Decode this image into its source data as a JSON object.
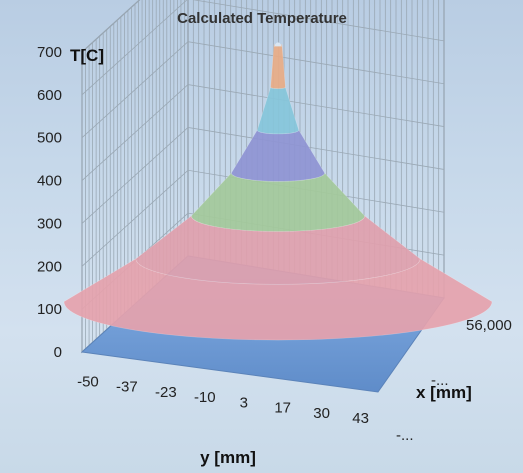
{
  "chart_data": {
    "type": "surface",
    "title": "Calculated Temperature",
    "zlabel": "T[C]",
    "xlabel": "x [mm]",
    "ylabel": "y [mm]",
    "zlim": [
      0,
      700
    ],
    "z_ticks": [
      "0",
      "100",
      "200",
      "300",
      "400",
      "500",
      "600",
      "700"
    ],
    "y_ticks": [
      "-50",
      "-37",
      "-23",
      "-10",
      "3",
      "17",
      "30",
      "43"
    ],
    "x_ticks": [
      "56,000",
      "-...",
      "-..."
    ],
    "peak": {
      "value": 700,
      "y_position_mm": 3
    },
    "baseline": 100,
    "color_bands": [
      {
        "range": [
          0,
          100
        ],
        "color": "#6f9bd6"
      },
      {
        "range": [
          100,
          200
        ],
        "color": "#e5a2ad"
      },
      {
        "range": [
          200,
          300
        ],
        "color": "#e0a0ac"
      },
      {
        "range": [
          300,
          400
        ],
        "color": "#a3c99a"
      },
      {
        "range": [
          400,
          500
        ],
        "color": "#8e94d3"
      },
      {
        "range": [
          500,
          600
        ],
        "color": "#86c6da"
      },
      {
        "range": [
          600,
          700
        ],
        "color": "#e8ab86"
      }
    ],
    "grid": true
  }
}
